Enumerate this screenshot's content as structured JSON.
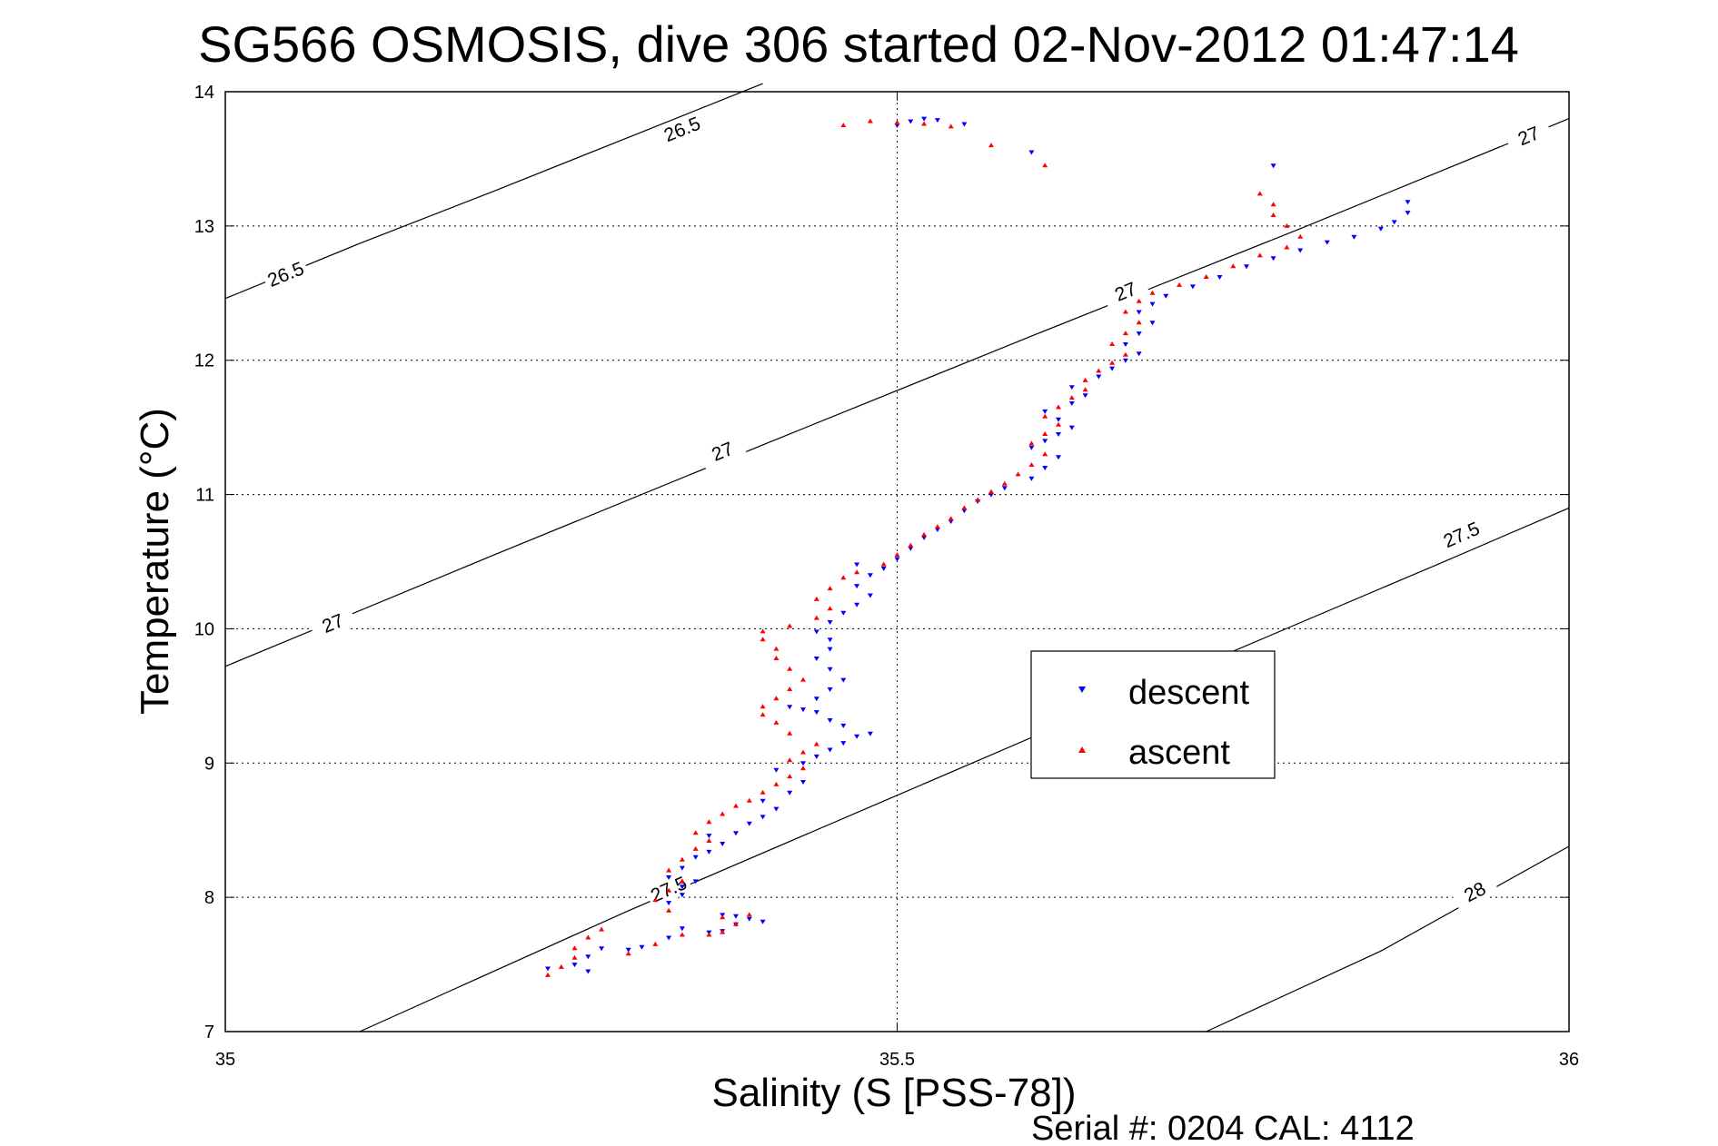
{
  "chart_data": {
    "type": "scatter",
    "title": "SG566 OSMOSIS, dive 306 started 02-Nov-2012 01:47:14",
    "xlabel": "Salinity (S [PSS-78])",
    "ylabel": "Temperature (°C)",
    "xlim": [
      35,
      36
    ],
    "ylim": [
      7,
      14
    ],
    "xticks": [
      "35",
      "35.5",
      "36"
    ],
    "yticks": [
      "7",
      "8",
      "9",
      "10",
      "11",
      "12",
      "13",
      "14"
    ],
    "grid": true,
    "legend_position": "center-right",
    "series": [
      {
        "name": "descent",
        "marker": "triangle-down",
        "color": "#0000ff",
        "points": [
          [
            35.27,
            7.45
          ],
          [
            35.24,
            7.47
          ],
          [
            35.26,
            7.5
          ],
          [
            35.27,
            7.56
          ],
          [
            35.28,
            7.62
          ],
          [
            35.3,
            7.61
          ],
          [
            35.31,
            7.63
          ],
          [
            35.33,
            7.7
          ],
          [
            35.34,
            7.77
          ],
          [
            35.36,
            7.74
          ],
          [
            35.37,
            7.75
          ],
          [
            35.38,
            7.8
          ],
          [
            35.38,
            7.86
          ],
          [
            35.39,
            7.84
          ],
          [
            35.4,
            7.82
          ],
          [
            35.37,
            7.87
          ],
          [
            35.33,
            7.96
          ],
          [
            35.34,
            8.02
          ],
          [
            35.34,
            8.08
          ],
          [
            35.35,
            8.12
          ],
          [
            35.33,
            8.15
          ],
          [
            35.34,
            8.22
          ],
          [
            35.35,
            8.3
          ],
          [
            35.36,
            8.34
          ],
          [
            35.37,
            8.4
          ],
          [
            35.36,
            8.46
          ],
          [
            35.38,
            8.48
          ],
          [
            35.39,
            8.55
          ],
          [
            35.4,
            8.6
          ],
          [
            35.41,
            8.66
          ],
          [
            35.4,
            8.72
          ],
          [
            35.42,
            8.78
          ],
          [
            35.43,
            8.86
          ],
          [
            35.41,
            8.95
          ],
          [
            35.43,
            9.0
          ],
          [
            35.44,
            9.05
          ],
          [
            35.45,
            9.1
          ],
          [
            35.46,
            9.15
          ],
          [
            35.47,
            9.2
          ],
          [
            35.48,
            9.22
          ],
          [
            35.46,
            9.28
          ],
          [
            35.45,
            9.32
          ],
          [
            35.44,
            9.38
          ],
          [
            35.43,
            9.4
          ],
          [
            35.42,
            9.42
          ],
          [
            35.44,
            9.48
          ],
          [
            35.45,
            9.55
          ],
          [
            35.46,
            9.62
          ],
          [
            35.45,
            9.7
          ],
          [
            35.44,
            9.78
          ],
          [
            35.45,
            9.85
          ],
          [
            35.45,
            9.92
          ],
          [
            35.44,
            9.98
          ],
          [
            35.45,
            10.05
          ],
          [
            35.46,
            10.12
          ],
          [
            35.47,
            10.18
          ],
          [
            35.48,
            10.25
          ],
          [
            35.47,
            10.32
          ],
          [
            35.48,
            10.4
          ],
          [
            35.49,
            10.45
          ],
          [
            35.47,
            10.48
          ],
          [
            35.5,
            10.52
          ],
          [
            35.51,
            10.6
          ],
          [
            35.52,
            10.68
          ],
          [
            35.53,
            10.74
          ],
          [
            35.54,
            10.8
          ],
          [
            35.55,
            10.88
          ],
          [
            35.56,
            10.95
          ],
          [
            35.57,
            11.0
          ],
          [
            35.58,
            11.05
          ],
          [
            35.6,
            11.12
          ],
          [
            35.61,
            11.2
          ],
          [
            35.62,
            11.28
          ],
          [
            35.6,
            11.35
          ],
          [
            35.61,
            11.4
          ],
          [
            35.62,
            11.45
          ],
          [
            35.63,
            11.5
          ],
          [
            35.62,
            11.56
          ],
          [
            35.61,
            11.62
          ],
          [
            35.63,
            11.68
          ],
          [
            35.64,
            11.74
          ],
          [
            35.63,
            11.8
          ],
          [
            35.65,
            11.88
          ],
          [
            35.66,
            11.94
          ],
          [
            35.67,
            12.0
          ],
          [
            35.68,
            12.05
          ],
          [
            35.67,
            12.12
          ],
          [
            35.68,
            12.2
          ],
          [
            35.69,
            12.28
          ],
          [
            35.68,
            12.36
          ],
          [
            35.69,
            12.42
          ],
          [
            35.7,
            12.48
          ],
          [
            35.72,
            12.55
          ],
          [
            35.74,
            12.62
          ],
          [
            35.76,
            12.7
          ],
          [
            35.78,
            12.76
          ],
          [
            35.8,
            12.82
          ],
          [
            35.82,
            12.88
          ],
          [
            35.84,
            12.92
          ],
          [
            35.86,
            12.98
          ],
          [
            35.87,
            13.03
          ],
          [
            35.88,
            13.1
          ],
          [
            35.88,
            13.18
          ],
          [
            35.5,
            13.75
          ],
          [
            35.51,
            13.78
          ],
          [
            35.52,
            13.8
          ],
          [
            35.53,
            13.79
          ],
          [
            35.55,
            13.76
          ],
          [
            35.6,
            13.55
          ],
          [
            35.78,
            13.45
          ]
        ]
      },
      {
        "name": "ascent",
        "marker": "triangle-up",
        "color": "#ff0000",
        "points": [
          [
            35.24,
            7.42
          ],
          [
            35.25,
            7.48
          ],
          [
            35.26,
            7.55
          ],
          [
            35.26,
            7.62
          ],
          [
            35.27,
            7.7
          ],
          [
            35.28,
            7.76
          ],
          [
            35.3,
            7.58
          ],
          [
            35.32,
            7.65
          ],
          [
            35.34,
            7.72
          ],
          [
            35.36,
            7.72
          ],
          [
            35.37,
            7.74
          ],
          [
            35.38,
            7.8
          ],
          [
            35.39,
            7.87
          ],
          [
            35.37,
            7.85
          ],
          [
            35.33,
            7.9
          ],
          [
            35.32,
            7.98
          ],
          [
            35.33,
            8.05
          ],
          [
            35.34,
            8.12
          ],
          [
            35.33,
            8.2
          ],
          [
            35.34,
            8.28
          ],
          [
            35.35,
            8.36
          ],
          [
            35.36,
            8.42
          ],
          [
            35.35,
            8.48
          ],
          [
            35.36,
            8.56
          ],
          [
            35.37,
            8.62
          ],
          [
            35.38,
            8.68
          ],
          [
            35.39,
            8.72
          ],
          [
            35.4,
            8.78
          ],
          [
            35.41,
            8.84
          ],
          [
            35.42,
            8.9
          ],
          [
            35.43,
            8.96
          ],
          [
            35.42,
            9.02
          ],
          [
            35.43,
            9.08
          ],
          [
            35.44,
            9.14
          ],
          [
            35.42,
            9.22
          ],
          [
            35.41,
            9.3
          ],
          [
            35.4,
            9.36
          ],
          [
            35.4,
            9.42
          ],
          [
            35.41,
            9.48
          ],
          [
            35.42,
            9.55
          ],
          [
            35.43,
            9.62
          ],
          [
            35.42,
            9.7
          ],
          [
            35.41,
            9.78
          ],
          [
            35.41,
            9.85
          ],
          [
            35.4,
            9.92
          ],
          [
            35.4,
            9.98
          ],
          [
            35.42,
            10.02
          ],
          [
            35.44,
            10.08
          ],
          [
            35.45,
            10.15
          ],
          [
            35.44,
            10.22
          ],
          [
            35.45,
            10.3
          ],
          [
            35.46,
            10.38
          ],
          [
            35.47,
            10.42
          ],
          [
            35.49,
            10.48
          ],
          [
            35.5,
            10.55
          ],
          [
            35.51,
            10.62
          ],
          [
            35.52,
            10.7
          ],
          [
            35.53,
            10.76
          ],
          [
            35.54,
            10.82
          ],
          [
            35.55,
            10.9
          ],
          [
            35.56,
            10.96
          ],
          [
            35.57,
            11.02
          ],
          [
            35.58,
            11.08
          ],
          [
            35.59,
            11.15
          ],
          [
            35.6,
            11.22
          ],
          [
            35.61,
            11.3
          ],
          [
            35.6,
            11.38
          ],
          [
            35.61,
            11.45
          ],
          [
            35.62,
            11.52
          ],
          [
            35.61,
            11.58
          ],
          [
            35.62,
            11.65
          ],
          [
            35.63,
            11.72
          ],
          [
            35.64,
            11.78
          ],
          [
            35.64,
            11.85
          ],
          [
            35.65,
            11.92
          ],
          [
            35.66,
            11.98
          ],
          [
            35.67,
            12.04
          ],
          [
            35.66,
            12.12
          ],
          [
            35.67,
            12.2
          ],
          [
            35.68,
            12.28
          ],
          [
            35.67,
            12.36
          ],
          [
            35.68,
            12.44
          ],
          [
            35.69,
            12.5
          ],
          [
            35.71,
            12.56
          ],
          [
            35.73,
            12.62
          ],
          [
            35.75,
            12.7
          ],
          [
            35.77,
            12.78
          ],
          [
            35.79,
            12.84
          ],
          [
            35.8,
            12.92
          ],
          [
            35.79,
            13.0
          ],
          [
            35.78,
            13.08
          ],
          [
            35.78,
            13.16
          ],
          [
            35.77,
            13.24
          ],
          [
            35.46,
            13.75
          ],
          [
            35.48,
            13.78
          ],
          [
            35.5,
            13.77
          ],
          [
            35.52,
            13.76
          ],
          [
            35.54,
            13.74
          ],
          [
            35.57,
            13.6
          ],
          [
            35.61,
            13.45
          ]
        ]
      }
    ],
    "contours": [
      {
        "label": "26.5",
        "points": [
          [
            35.0,
            12.46
          ],
          [
            35.1,
            12.87
          ],
          [
            35.2,
            13.26
          ],
          [
            35.3,
            13.66
          ],
          [
            35.4,
            14.06
          ]
        ],
        "labels_at": [
          [
            35.045,
            12.64
          ],
          [
            35.34,
            13.72
          ]
        ]
      },
      {
        "label": "27",
        "points": [
          [
            35.0,
            9.72
          ],
          [
            35.2,
            10.55
          ],
          [
            35.4,
            11.37
          ],
          [
            35.6,
            12.18
          ],
          [
            35.8,
            12.98
          ],
          [
            36.0,
            13.8
          ]
        ],
        "labels_at": [
          [
            35.08,
            10.04
          ],
          [
            35.37,
            11.32
          ],
          [
            35.67,
            12.51
          ],
          [
            35.97,
            13.67
          ]
        ]
      },
      {
        "label": "27.5",
        "points": [
          [
            35.1,
            7.0
          ],
          [
            35.3,
            7.9
          ],
          [
            35.5,
            8.76
          ],
          [
            35.7,
            9.62
          ],
          [
            35.9,
            10.47
          ],
          [
            36.0,
            10.9
          ]
        ],
        "labels_at": [
          [
            35.33,
            8.06
          ],
          [
            35.92,
            10.7
          ]
        ]
      },
      {
        "label": "28",
        "points": [
          [
            35.73,
            7.0
          ],
          [
            35.86,
            7.6
          ],
          [
            36.0,
            8.38
          ]
        ],
        "labels_at": [
          [
            35.93,
            8.04
          ]
        ]
      }
    ]
  },
  "legend": {
    "descent_label": "descent",
    "ascent_label": "ascent"
  },
  "footer": {
    "serial_text": "Serial #: 0204  CAL: 4112"
  }
}
